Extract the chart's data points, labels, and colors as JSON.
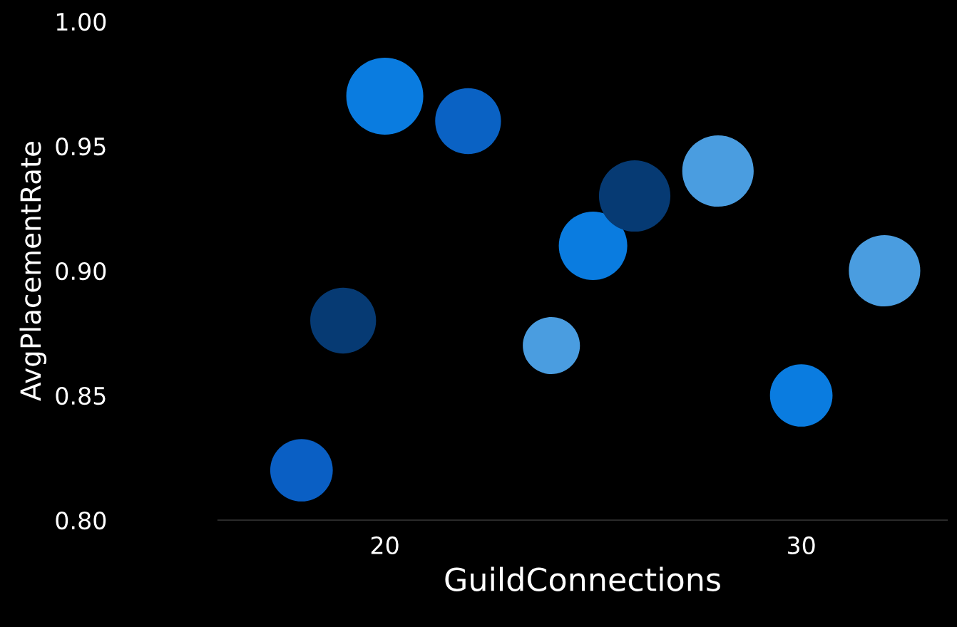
{
  "chart_data": {
    "type": "bubble",
    "xlabel": "GuildConnections",
    "ylabel": "AvgPlacementRate",
    "x": [
      18,
      19,
      20,
      22,
      24,
      25,
      26,
      28,
      30,
      32
    ],
    "values": [
      0.82,
      0.88,
      0.97,
      0.96,
      0.87,
      0.91,
      0.93,
      0.94,
      0.85,
      0.9
    ],
    "sizes": [
      0.66,
      0.73,
      1,
      0.73,
      0.55,
      0.79,
      0.86,
      0.86,
      0.66,
      0.86
    ],
    "colors": [
      "#0a5fc4",
      "#063a73",
      "#0a7ce0",
      "#0a62c4",
      "#4a9de0",
      "#0a7ce0",
      "#063a73",
      "#4a9de0",
      "#0a7ce0",
      "#4a9de0"
    ],
    "xlim": [
      16,
      33.5
    ],
    "xticks": [
      20,
      30
    ],
    "ylim": [
      0.8,
      1.0
    ],
    "yticks": [
      {
        "value": 0.8,
        "label": "0.80"
      },
      {
        "value": 0.85,
        "label": "0.85"
      },
      {
        "value": 0.9,
        "label": "0.90"
      },
      {
        "value": 0.95,
        "label": "0.95"
      },
      {
        "value": 1.0,
        "label": "1.00"
      }
    ],
    "grid": false,
    "legend": false
  }
}
